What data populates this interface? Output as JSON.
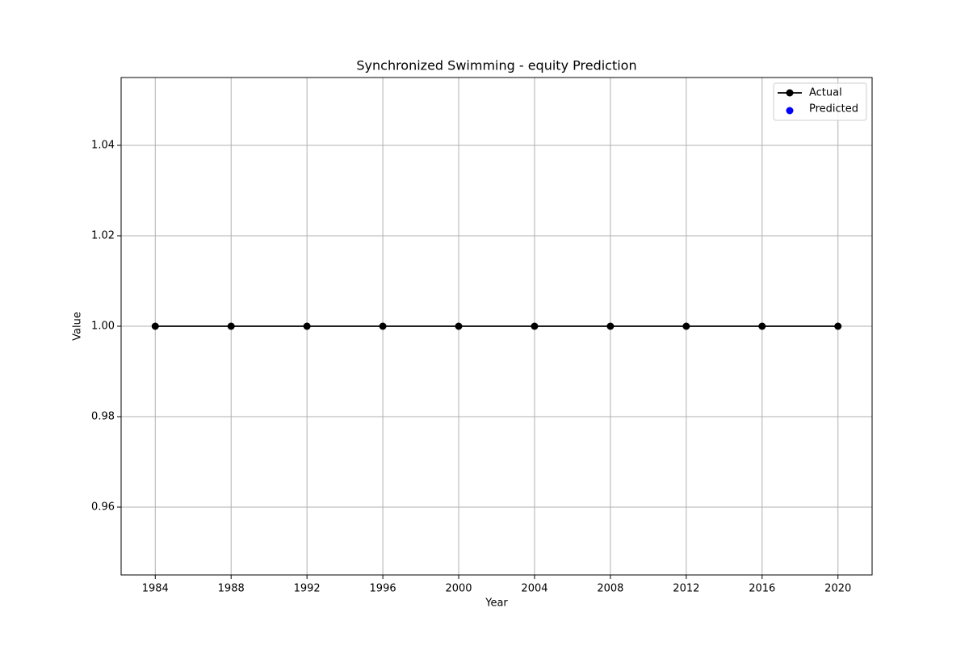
{
  "chart_data": {
    "type": "line",
    "title": "Synchronized Swimming - equity Prediction",
    "xlabel": "Year",
    "ylabel": "Value",
    "x": [
      1984,
      1988,
      1992,
      1996,
      2000,
      2004,
      2008,
      2012,
      2016,
      2020
    ],
    "series": [
      {
        "name": "Actual",
        "color": "#000000",
        "style": "line",
        "values": [
          1,
          1,
          1,
          1,
          1,
          1,
          1,
          1,
          1,
          1
        ]
      },
      {
        "name": "Predicted",
        "color": "#0000ff",
        "style": "scatter",
        "values": [
          null,
          null,
          null,
          null,
          null,
          null,
          null,
          null,
          null,
          null
        ]
      }
    ],
    "xlim": [
      1982.2,
      2021.8
    ],
    "xticks": [
      1984,
      1988,
      1992,
      1996,
      2000,
      2004,
      2008,
      2012,
      2016,
      2020
    ],
    "ylim": [
      0.945,
      1.055
    ],
    "yticks": [
      0.96,
      0.98,
      {
        "value": 1,
        "label": "1.00"
      },
      1.02,
      1.04
    ],
    "grid": true,
    "legend": "upper right"
  }
}
